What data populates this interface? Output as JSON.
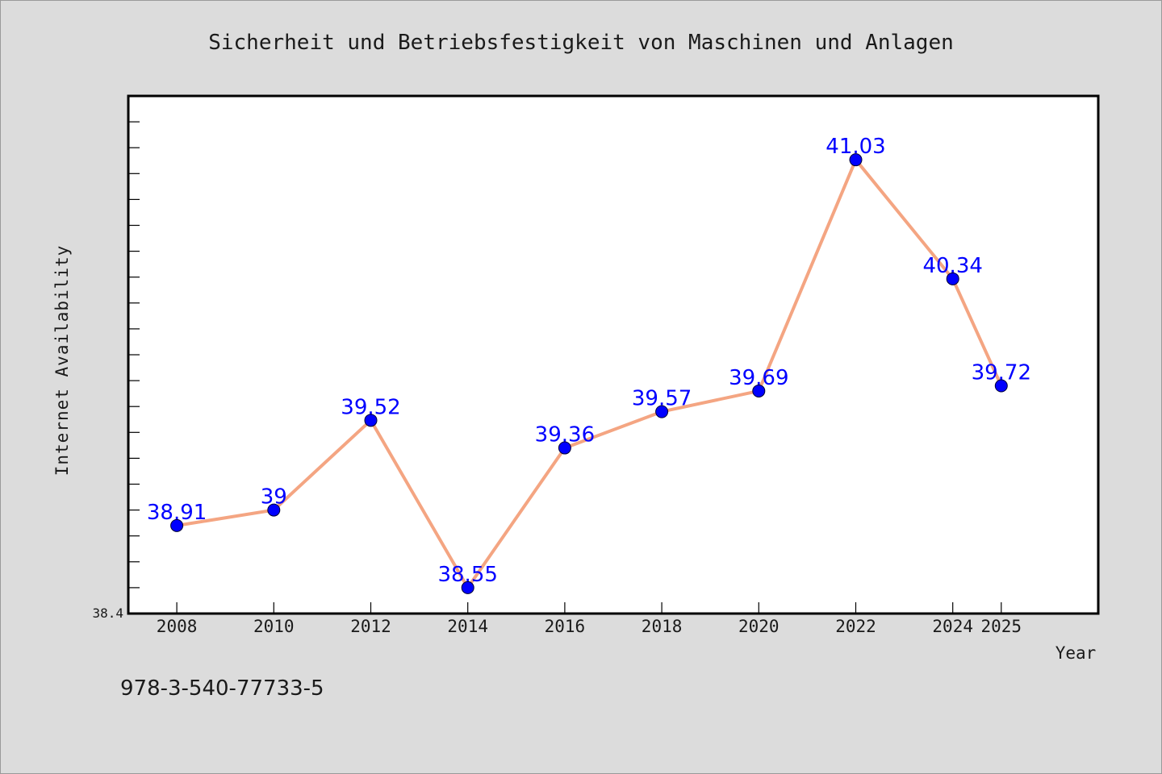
{
  "chart_data": {
    "type": "line",
    "title": "Sicherheit und Betriebsfestigkeit von Maschinen und Anlagen",
    "xlabel": "Year",
    "ylabel": "Internet Availability",
    "x": [
      2008,
      2010,
      2012,
      2014,
      2016,
      2018,
      2020,
      2022,
      2024,
      2025
    ],
    "x_ticks": [
      "2008",
      "2010",
      "2012",
      "2014",
      "2016",
      "2018",
      "2020",
      "2022",
      "2024",
      "2025"
    ],
    "y_tick_labels": [
      "38.4"
    ],
    "series": [
      {
        "values": [
          38.91,
          39.0,
          39.52,
          38.55,
          39.36,
          39.57,
          39.69,
          41.03,
          40.34,
          39.72
        ],
        "value_labels": [
          "38.91",
          "39",
          "39.52",
          "38.55",
          "39.36",
          "39.57",
          "39.69",
          "41.03",
          "40.34",
          "39.72"
        ],
        "line_color": "#f4a582",
        "marker_color": "#0000ff"
      }
    ],
    "ylim": [
      38.4,
      41.4
    ],
    "xlim": [
      2007,
      2027
    ],
    "grid": false,
    "legend": "none"
  },
  "footer_text": "978-3-540-77733-5",
  "colors": {
    "background": "#dcdcdc",
    "plot_background": "#ffffff",
    "line": "#f4a582",
    "marker": "#0000ff",
    "data_label": "#0000ff"
  }
}
